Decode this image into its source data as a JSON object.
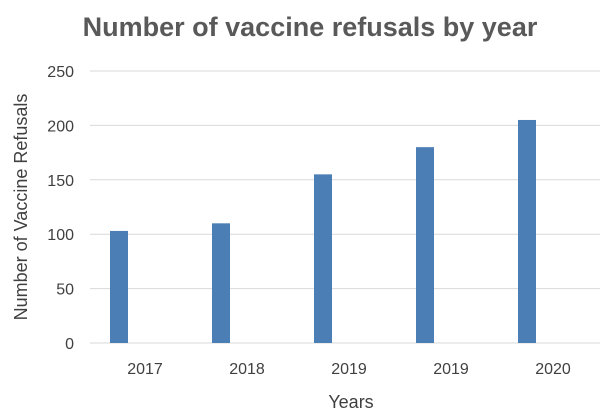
{
  "chart_data": {
    "type": "bar",
    "title": "Number of vaccine refusals by year",
    "xlabel": "Years",
    "ylabel": "Number of Vaccine Refusals",
    "categories": [
      "2017",
      "2018",
      "2019",
      "2019",
      "2020"
    ],
    "values": [
      103,
      110,
      155,
      180,
      205
    ],
    "ylim": [
      0,
      250
    ],
    "yticks": [
      "0",
      "50",
      "100",
      "150",
      "200",
      "250"
    ],
    "grid": true,
    "bar_color": "#4a7eb5"
  }
}
